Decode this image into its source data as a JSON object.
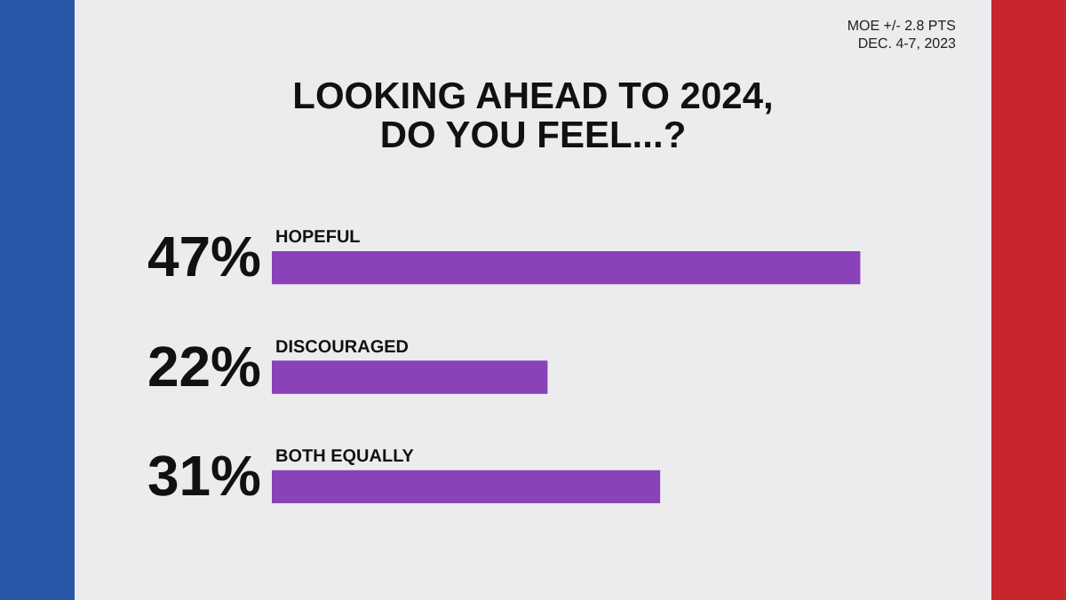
{
  "chart_data": {
    "type": "bar",
    "orientation": "horizontal",
    "title": "LOOKING AHEAD TO 2024,\nDO YOU FEEL...?",
    "annotations": [
      "MOE +/- 2.8 PTS",
      "DEC. 4-7, 2023"
    ],
    "categories": [
      "HOPEFUL",
      "DISCOURAGED",
      "BOTH EQUALLY"
    ],
    "values": [
      47,
      22,
      31
    ],
    "value_labels": [
      "47%",
      "22%",
      "31%"
    ],
    "color": "#8a42b8",
    "grid": false,
    "legend": false
  }
}
